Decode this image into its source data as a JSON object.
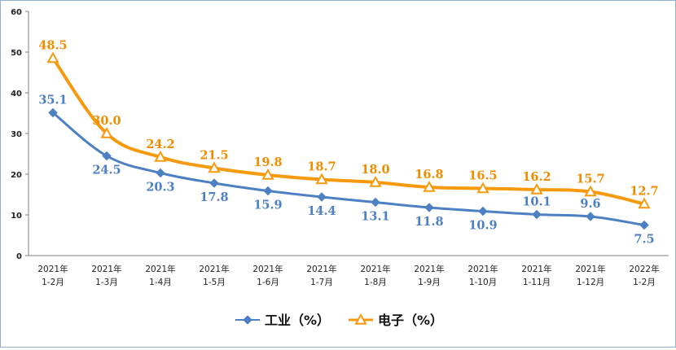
{
  "chart_data": {
    "type": "line",
    "title": "",
    "xlabel": "",
    "ylabel": "",
    "ylim": [
      0,
      60
    ],
    "yticks": [
      "0",
      "10",
      "20",
      "30",
      "40",
      "50",
      "60"
    ],
    "grid": false,
    "legend_position": "bottom",
    "categories": [
      [
        "2021年",
        "1-2月"
      ],
      [
        "2021年",
        "1-3月"
      ],
      [
        "2021年",
        "1-4月"
      ],
      [
        "2021年",
        "1-5月"
      ],
      [
        "2021年",
        "1-6月"
      ],
      [
        "2021年",
        "1-7月"
      ],
      [
        "2021年",
        "1-8月"
      ],
      [
        "2021年",
        "1-9月"
      ],
      [
        "2021年",
        "1-10月"
      ],
      [
        "2021年",
        "1-11月"
      ],
      [
        "2021年",
        "1-12月"
      ],
      [
        "2022年",
        "1-2月"
      ]
    ],
    "series": [
      {
        "name": "工业（%）",
        "color": "#4d80c2",
        "marker": "diamond",
        "label_color": "#4d80c2",
        "values": [
          35.1,
          24.5,
          20.3,
          17.8,
          15.9,
          14.4,
          13.1,
          11.8,
          10.9,
          10.1,
          9.6,
          7.5
        ],
        "labels": [
          "35.1",
          "24.5",
          "20.3",
          "17.8",
          "15.9",
          "14.4",
          "13.1",
          "11.8",
          "10.9",
          "10.1",
          "9.6",
          "7.5"
        ],
        "label_side": [
          "above",
          "below",
          "below",
          "below",
          "below",
          "below",
          "below",
          "below",
          "below",
          "above",
          "above",
          "below"
        ]
      },
      {
        "name": "电子（%）",
        "color": "#f59a0e",
        "marker": "triangle",
        "label_color": "#f08c00",
        "values": [
          48.5,
          30.0,
          24.2,
          21.5,
          19.8,
          18.7,
          18.0,
          16.8,
          16.5,
          16.2,
          15.7,
          12.7
        ],
        "labels": [
          "48.5",
          "30.0",
          "24.2",
          "21.5",
          "19.8",
          "18.7",
          "18.0",
          "16.8",
          "16.5",
          "16.2",
          "15.7",
          "12.7"
        ],
        "label_side": [
          "above",
          "above",
          "above",
          "above",
          "above",
          "above",
          "above",
          "above",
          "above",
          "above",
          "above",
          "above"
        ]
      }
    ]
  }
}
